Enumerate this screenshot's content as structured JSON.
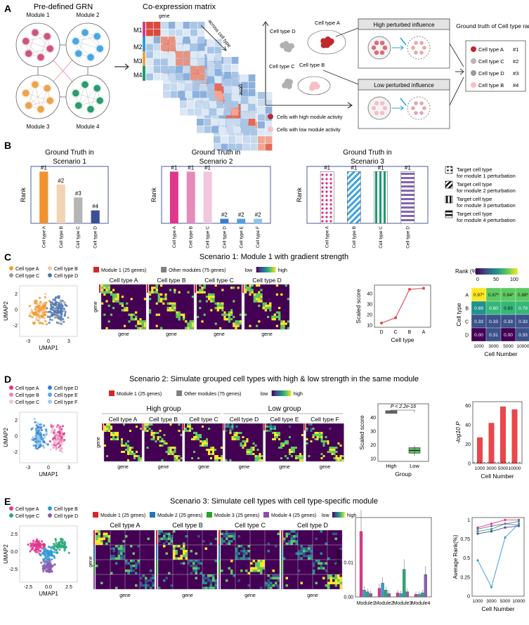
{
  "panel_letters": [
    "A",
    "B",
    "C",
    "D",
    "E"
  ],
  "panelA": {
    "grn_title": "Pre-defined GRN",
    "modules": [
      "Module 1",
      "Module 2",
      "Module 3",
      "Module 4"
    ],
    "coexp_title": "Co-expression matrix",
    "gene_label": "gene",
    "across_label": "across cell type",
    "row_labels": [
      "M1",
      "M2",
      "M3",
      "M4"
    ],
    "cell_types": {
      "A": "Cell type A",
      "B": "Cell type B",
      "C": "Cell type C",
      "D": "Cell type D"
    },
    "high_box": "High perturbed influence",
    "low_box": "Low perturbed influence",
    "legend_high": "Cells with high module activity",
    "legend_low": "Cells with low module activity",
    "gt_title": "Ground truth of Cell type rank",
    "gt_rows": [
      {
        "label": "Cell type A",
        "rank": "#1",
        "color": "#c0282d"
      },
      {
        "label": "Cell type C",
        "rank": "#2",
        "color": "#b7b7b7"
      },
      {
        "label": "Cell type D",
        "rank": "#3",
        "color": "#9a9a9a"
      },
      {
        "label": "Cell type B",
        "rank": "#4",
        "color": "#f5c0c5"
      }
    ]
  },
  "panelB": {
    "ylabel": "Rank",
    "s1": {
      "title": "Ground Truth in Scenario 1",
      "cats": [
        "Cell type A",
        "Cell type B",
        "Cell type C",
        "Cell type D"
      ],
      "ranks": [
        "#1",
        "#2",
        "#3",
        "#4"
      ],
      "values": [
        4,
        3,
        2,
        1
      ],
      "colors": [
        "#f0922f",
        "#f2d3b3",
        "#b5b5b5",
        "#3b4f94"
      ]
    },
    "s2": {
      "title": "Ground Truth in Scenario 2",
      "cats": [
        "Cell type A",
        "Cell type B",
        "Cell type C",
        "Cell type D",
        "Cell type E",
        "Cell type F"
      ],
      "ranks": [
        "#1",
        "#1",
        "#1",
        "#2",
        "#2",
        "#2"
      ],
      "values": [
        4,
        4,
        4,
        0.35,
        0.35,
        0.35
      ],
      "colors": [
        "#e0368c",
        "#e78ab8",
        "#f2c6dc",
        "#3a7fcf",
        "#4f9fe0",
        "#8cc3ef"
      ]
    },
    "s3": {
      "title": "Ground Truth in Scenario 3",
      "cats": [
        "Cell type A",
        "Cell type B",
        "Cell type C",
        "Cell type D"
      ],
      "ranks": [
        "#1",
        "#1",
        "#1",
        "#1"
      ],
      "values": [
        4,
        4,
        4,
        4
      ]
    },
    "legend": [
      "Target cell type for module 1 perturbation",
      "Target cell type for module 2 perturbation",
      "Target cell type for module 3 perturbation",
      "Target cell type for module 4 perturbation"
    ]
  },
  "panelC": {
    "title": "Scenario 1: Module 1 with gradient strength",
    "umap_legend": [
      "Cell type A",
      "Cell type B",
      "Cell type C",
      "Cell type D"
    ],
    "umap_colors": [
      "#f39b2f",
      "#f2c9a3",
      "#9a9a9a",
      "#4f79b7"
    ],
    "umap_x": "UMAP1",
    "umap_y": "UMAP2",
    "xticks": [
      "-3",
      "0",
      "3"
    ],
    "yticks": [
      "2",
      "0",
      "-2"
    ],
    "mod_legend": [
      "Module 1 (25 genes)",
      "Other modules (75 genes)"
    ],
    "low": "low",
    "high": "high",
    "heat_titles": [
      "Cell type A",
      "Cell type B",
      "Cell type C",
      "Cell type D"
    ],
    "gene": "gene",
    "line": {
      "cats": [
        "D",
        "C",
        "B",
        "A"
      ],
      "values": [
        12,
        17,
        44,
        45
      ],
      "yticks": [
        "10",
        "20",
        "30",
        "40"
      ],
      "ylabel": "Scaled score",
      "xlabel": "Cell type"
    },
    "rank": {
      "title": "Rank (%)",
      "scale": [
        "0",
        "50",
        "100"
      ],
      "rows": [
        "A",
        "B",
        "C",
        "D"
      ],
      "cols": [
        "1000",
        "3000",
        "5000",
        "10000"
      ],
      "vals": [
        [
          "0.97*",
          "0.87*",
          "0.84*",
          "0.88*"
        ],
        [
          "0.69",
          "0.80",
          "0.83",
          "0.79"
        ],
        [
          "0.33",
          "0.33",
          "0.33",
          "0.33"
        ],
        [
          "0.00",
          "0.31",
          "0.00",
          "0.33"
        ]
      ],
      "ylabel": "Cell type",
      "xlabel": "Cell Number"
    }
  },
  "panelD": {
    "title": "Scenario 2: Simulate grouped cell types with high & low strength in the same module",
    "umap_legend": [
      "Cell type A",
      "Cell type D",
      "Cell type B",
      "Cell type E",
      "Cell type C",
      "Cell type F"
    ],
    "umap_colors": [
      "#e0368c",
      "#3a7fcf",
      "#e78ab8",
      "#5aa7e3",
      "#f2c6dc",
      "#9fcdf0"
    ],
    "xticks": [
      "-3",
      "0",
      "3"
    ],
    "yticks": [
      "2",
      "0",
      "-2"
    ],
    "umap_x": "UMAP1",
    "umap_y": "UMAP2",
    "mod_legend": [
      "Module 1 (25 genes)",
      "Other modules (75 genes)"
    ],
    "low": "low",
    "high": "high",
    "high_group": "High group",
    "low_group": "Low group",
    "heat_titles": [
      "Cell type A",
      "Cell type B",
      "Cell type C",
      "Cell type D",
      "Cell type E",
      "Cell type F"
    ],
    "gene": "gene",
    "box": {
      "p": "P < 2.2e-16",
      "cats": [
        "High",
        "Low"
      ],
      "yticks": [
        "40",
        "30",
        "20",
        "10"
      ],
      "ylabel": "Scaled score",
      "xlabel": "Group"
    },
    "bar": {
      "cats": [
        "1000",
        "3000",
        "5000",
        "10000"
      ],
      "values": [
        27,
        42,
        59,
        56
      ],
      "yticks": [
        "60",
        "40",
        "20",
        "0"
      ],
      "ylabel": "-log10 P",
      "xlabel": "Cell Number"
    }
  },
  "panelE": {
    "title": "Scenario 3: Simulate cell types with cell type-specific module",
    "umap_legend": [
      "Cell type A",
      "Cell type B",
      "Cell type C",
      "Cell type D"
    ],
    "umap_colors": [
      "#e0368c",
      "#2f9ad8",
      "#2aa876",
      "#8a5fb0"
    ],
    "xticks": [
      "-2.5",
      "0.0",
      "2.5"
    ],
    "yticks": [
      "2.5",
      "0.0",
      "-2.5"
    ],
    "umap_x": "UMAP1",
    "umap_y": "UMAP2",
    "mod_legend": [
      "Module 1 (25 genes)",
      "Module 2 (25 genes)",
      "Module 3 (25 genes)",
      "Module 4 (25 genes)"
    ],
    "mod_colors": [
      "#d62728",
      "#1f77b4",
      "#2ca02c",
      "#8c4fb0"
    ],
    "low": "low",
    "high": "high",
    "heat_titles": [
      "Cell type A",
      "Cell type B",
      "Cell type C",
      "Cell type D"
    ],
    "gene": "gene",
    "score": {
      "cats": [
        "Module1",
        "Module2",
        "Module3",
        "Module4"
      ],
      "yticks": [
        "0.01",
        "0.00"
      ],
      "ylabel": "Score"
    },
    "avg": {
      "cats": [
        "1000",
        "3000",
        "5000",
        "10000"
      ],
      "yticks": [
        "1",
        "0.75",
        "0.5",
        "0.25",
        "0"
      ],
      "ylabel": "Average Rank(%)",
      "xlabel": "Cell Number"
    }
  }
}
